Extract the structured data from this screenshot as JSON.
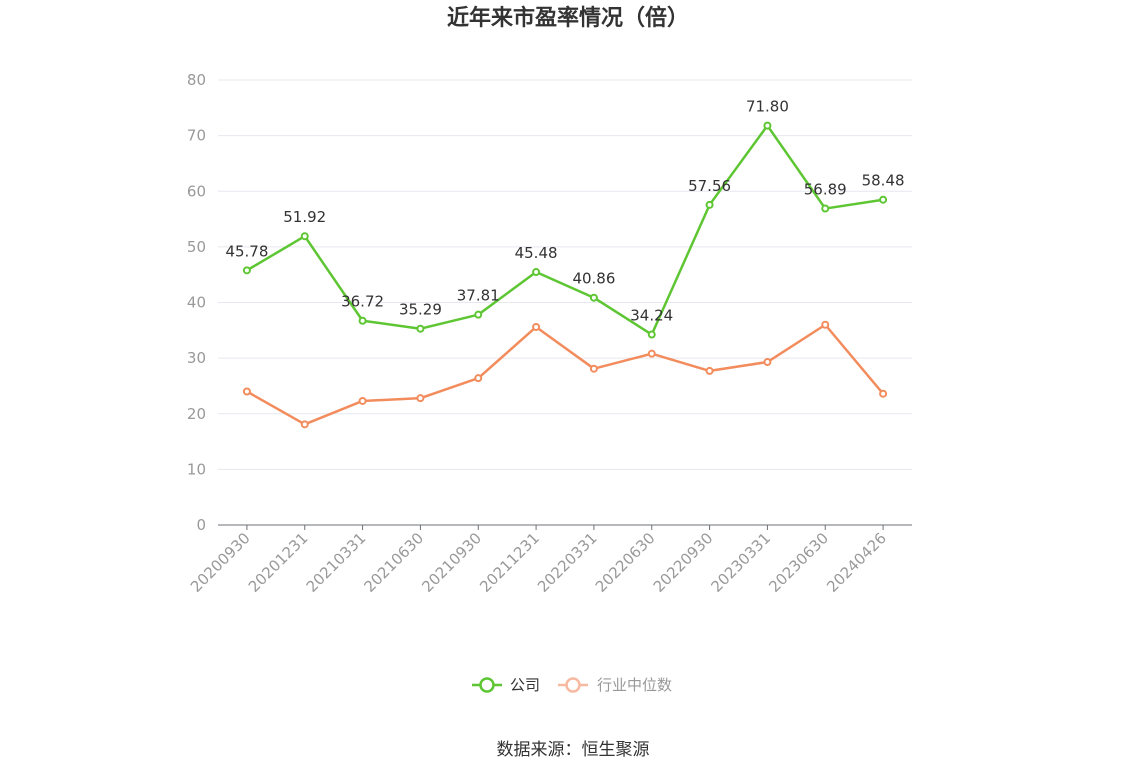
{
  "chart_data": {
    "type": "line",
    "title": "近年来市盈率情况（倍）",
    "source": "数据来源：恒生聚源",
    "categories": [
      "20200930",
      "20201231",
      "20210331",
      "20210630",
      "20210930",
      "20211231",
      "20220331",
      "20220630",
      "20220930",
      "20230331",
      "20230630",
      "20240426"
    ],
    "ylim": [
      0,
      80
    ],
    "yticks": [
      0,
      10,
      20,
      30,
      40,
      50,
      60,
      70,
      80
    ],
    "grid": true,
    "legend_position": "bottom",
    "series": [
      {
        "name": "公司",
        "color": "#5dc632",
        "values": [
          45.78,
          51.92,
          36.72,
          35.29,
          37.81,
          45.48,
          40.86,
          34.24,
          57.56,
          71.8,
          56.89,
          58.48
        ],
        "labels": [
          "45.78",
          "51.92",
          "36.72",
          "35.29",
          "37.81",
          "45.48",
          "40.86",
          "34.24",
          "57.56",
          "71.80",
          "56.89",
          "58.48"
        ]
      },
      {
        "name": "行业中位数",
        "color": "#f28c5d",
        "legend_color": "#f7b9a0",
        "values": [
          24.0,
          18.1,
          22.3,
          22.8,
          26.4,
          35.6,
          28.1,
          30.8,
          27.7,
          29.3,
          36.0,
          23.6
        ]
      }
    ]
  }
}
